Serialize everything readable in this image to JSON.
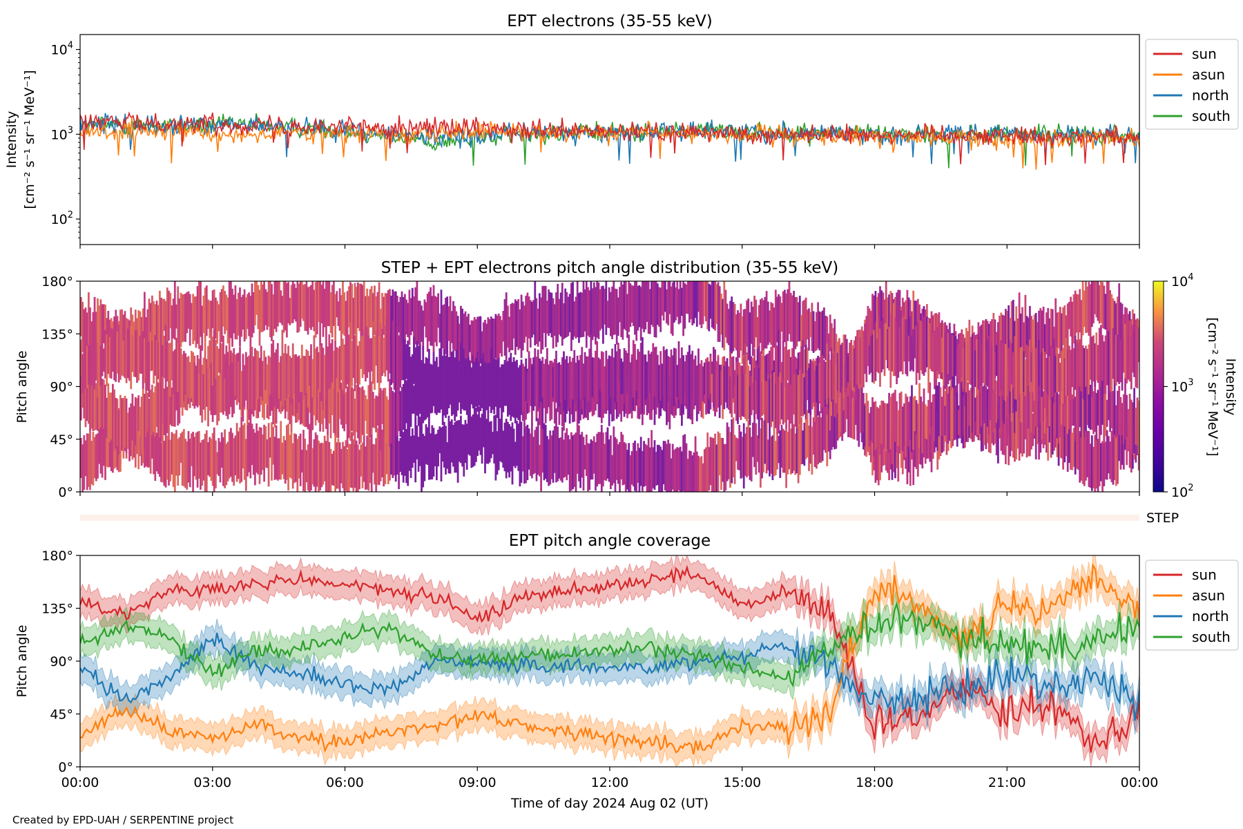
{
  "figure": {
    "credit": "Created by EPD-UAH / SERPENTINE project",
    "xlabel": "Time of day 2024 Aug 02 (UT)",
    "x_tick_labels": [
      "00:00",
      "03:00",
      "06:00",
      "09:00",
      "12:00",
      "15:00",
      "18:00",
      "21:00",
      "00:00"
    ]
  },
  "colors": {
    "sun": "#d62728",
    "asun": "#ff7f0e",
    "north": "#1f77b4",
    "south": "#2ca02c"
  },
  "chart_data": [
    {
      "type": "line",
      "title": "EPT electrons (35-55 keV)",
      "ylabel": "Intensity",
      "yunit": "[cm⁻² s⁻¹ sr⁻¹ MeV⁻¹]",
      "yscale": "log",
      "ylim": [
        50,
        15000
      ],
      "y_ticks": [
        {
          "value": 100,
          "base": "10",
          "exp": "2"
        },
        {
          "value": 1000,
          "base": "10",
          "exp": "3"
        },
        {
          "value": 10000,
          "base": "10",
          "exp": "4"
        }
      ],
      "x_hours": [
        0,
        2,
        4,
        6,
        8,
        10,
        12,
        14,
        16,
        18,
        20,
        22,
        24
      ],
      "legend_position": "outside-right",
      "series": [
        {
          "name": "sun",
          "color_key": "sun",
          "values": [
            1400,
            1350,
            1300,
            1250,
            1200,
            1100,
            1050,
            1050,
            1000,
            1000,
            1000,
            950,
            950
          ]
        },
        {
          "name": "asun",
          "color_key": "asun",
          "values": [
            1100,
            1050,
            1000,
            1000,
            1050,
            1100,
            1050,
            1000,
            950,
            950,
            900,
            900,
            900
          ]
        },
        {
          "name": "north",
          "color_key": "north",
          "values": [
            1300,
            1250,
            1250,
            1150,
            900,
            1050,
            1050,
            1100,
            1050,
            1000,
            1000,
            1000,
            950
          ]
        },
        {
          "name": "south",
          "color_key": "south",
          "values": [
            1300,
            1250,
            1300,
            1100,
            800,
            1000,
            1050,
            1100,
            1050,
            1050,
            1000,
            1000,
            950
          ]
        }
      ]
    },
    {
      "type": "heatmap",
      "title": "STEP + EPT electrons pitch angle distribution (35-55 keV)",
      "ylabel": "Pitch angle",
      "ylim": [
        0,
        180
      ],
      "y_tick_labels": [
        "0°",
        "45°",
        "90°",
        "135°",
        "180°"
      ],
      "colorbar": {
        "label": "Intensity",
        "unit": "[cm⁻² s⁻¹ sr⁻¹ MeV⁻¹]",
        "scale": "log",
        "range": [
          100,
          10000
        ],
        "ticks": [
          {
            "base": "10",
            "exp": "2"
          },
          {
            "base": "10",
            "exp": "3"
          },
          {
            "base": "10",
            "exp": "4"
          }
        ],
        "colormap": "plasma"
      }
    },
    {
      "type": "bar",
      "label": "STEP",
      "color": "#fdf0ea"
    },
    {
      "type": "line",
      "title": "EPT pitch angle coverage",
      "ylabel": "Pitch angle",
      "ylim": [
        0,
        180
      ],
      "y_tick_labels": [
        "0°",
        "45°",
        "90°",
        "135°",
        "180°"
      ],
      "x_hours": [
        0,
        1,
        2,
        3,
        4,
        5,
        6,
        7,
        8,
        9,
        10,
        11,
        12,
        13,
        14,
        15,
        16,
        17,
        18,
        19,
        20,
        21,
        22,
        23,
        24
      ],
      "band_halfwidth_deg": 12,
      "legend_position": "outside-right",
      "series": [
        {
          "name": "sun",
          "color_key": "sun",
          "values": [
            140,
            130,
            150,
            150,
            155,
            160,
            155,
            150,
            145,
            125,
            145,
            150,
            155,
            160,
            165,
            135,
            150,
            130,
            35,
            40,
            70,
            50,
            55,
            20,
            50
          ]
        },
        {
          "name": "asun",
          "color_key": "asun",
          "values": [
            25,
            50,
            30,
            25,
            35,
            25,
            20,
            30,
            35,
            45,
            35,
            30,
            25,
            20,
            15,
            35,
            35,
            50,
            150,
            140,
            110,
            135,
            130,
            165,
            125
          ]
        },
        {
          "name": "north",
          "color_key": "north",
          "values": [
            85,
            55,
            75,
            110,
            85,
            80,
            70,
            65,
            90,
            90,
            85,
            85,
            85,
            85,
            90,
            95,
            105,
            85,
            55,
            60,
            65,
            80,
            70,
            75,
            55
          ]
        },
        {
          "name": "south",
          "color_key": "south",
          "values": [
            105,
            120,
            110,
            80,
            100,
            100,
            110,
            120,
            95,
            90,
            95,
            95,
            100,
            100,
            95,
            85,
            75,
            100,
            120,
            125,
            110,
            105,
            100,
            110,
            120
          ]
        }
      ]
    }
  ]
}
